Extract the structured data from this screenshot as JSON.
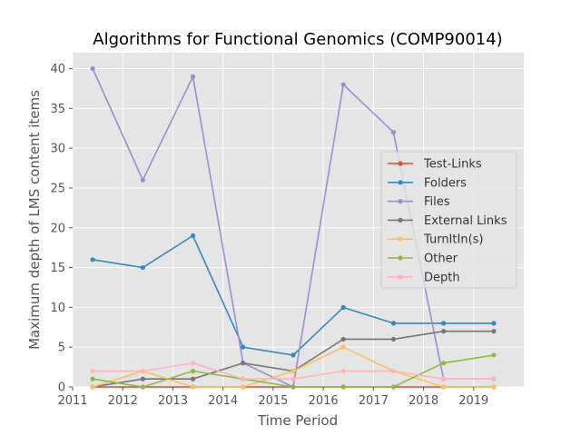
{
  "chart_data": {
    "type": "line",
    "title": "Algorithms for Functional Genomics (COMP90014)",
    "xlabel": "Time Period",
    "ylabel": "Maximum depth of LMS content items",
    "xlim": [
      2011,
      2020
    ],
    "ylim": [
      0,
      42
    ],
    "x_ticks": [
      2011,
      2012,
      2013,
      2014,
      2015,
      2016,
      2017,
      2018,
      2019
    ],
    "y_ticks": [
      0,
      5,
      10,
      15,
      20,
      25,
      30,
      35,
      40
    ],
    "grid": true,
    "legend_position": "center-right",
    "x": [
      2011.4,
      2012.4,
      2013.4,
      2014.4,
      2015.4,
      2016.4,
      2017.4,
      2018.4,
      2019.4
    ],
    "series": [
      {
        "name": "Test-Links",
        "color": "#E24A33",
        "values": [
          0,
          0,
          0,
          0,
          0,
          0,
          0,
          0,
          0
        ]
      },
      {
        "name": "Folders",
        "color": "#348ABD",
        "values": [
          16,
          15,
          19,
          5,
          4,
          10,
          8,
          8,
          8
        ]
      },
      {
        "name": "Files",
        "color": "#988ED5",
        "values": [
          40,
          26,
          39,
          3,
          0,
          38,
          32,
          1,
          1
        ]
      },
      {
        "name": "External Links",
        "color": "#777777",
        "values": [
          0,
          1,
          1,
          3,
          2,
          6,
          6,
          7,
          7
        ]
      },
      {
        "name": "TurnItIn(s)",
        "color": "#FBC15E",
        "values": [
          0,
          2,
          0,
          0,
          2,
          5,
          2,
          0,
          0
        ]
      },
      {
        "name": "Other",
        "color": "#8EBA42",
        "values": [
          1,
          0,
          2,
          1,
          0,
          0,
          0,
          3,
          4
        ]
      },
      {
        "name": "Depth",
        "color": "#FFB5B8",
        "values": [
          2,
          2,
          3,
          1,
          1,
          2,
          2,
          1,
          1
        ]
      }
    ]
  }
}
